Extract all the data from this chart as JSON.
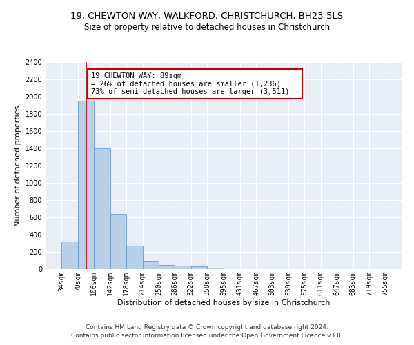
{
  "title_line1": "19, CHEWTON WAY, WALKFORD, CHRISTCHURCH, BH23 5LS",
  "title_line2": "Size of property relative to detached houses in Christchurch",
  "xlabel": "Distribution of detached houses by size in Christchurch",
  "ylabel": "Number of detached properties",
  "footnote1": "Contains HM Land Registry data © Crown copyright and database right 2024.",
  "footnote2": "Contains public sector information licensed under the Open Government Licence v3.0.",
  "bar_edges": [
    34,
    70,
    106,
    142,
    178,
    214,
    250,
    286,
    322,
    358,
    395,
    431,
    467,
    503,
    539,
    575,
    611,
    647,
    683,
    719,
    755
  ],
  "bar_values": [
    320,
    1950,
    1400,
    640,
    270,
    100,
    48,
    38,
    32,
    20,
    0,
    0,
    0,
    0,
    0,
    0,
    0,
    0,
    0,
    0
  ],
  "bar_color": "#b8d0e8",
  "bar_edgecolor": "#6699cc",
  "property_size": 89,
  "red_line_color": "#cc0000",
  "annotation_text": "19 CHEWTON WAY: 89sqm\n← 26% of detached houses are smaller (1,236)\n73% of semi-detached houses are larger (3,511) →",
  "annotation_box_color": "#ffffff",
  "annotation_box_edgecolor": "#cc0000",
  "ylim": [
    0,
    2400
  ],
  "yticks": [
    0,
    200,
    400,
    600,
    800,
    1000,
    1200,
    1400,
    1600,
    1800,
    2000,
    2200,
    2400
  ],
  "background_color": "#e8eef8",
  "grid_color": "#ffffff",
  "title_fontsize": 9.5,
  "subtitle_fontsize": 8.5,
  "axis_label_fontsize": 8,
  "tick_fontsize": 7,
  "annotation_fontsize": 7.5,
  "footnote_fontsize": 6.5
}
